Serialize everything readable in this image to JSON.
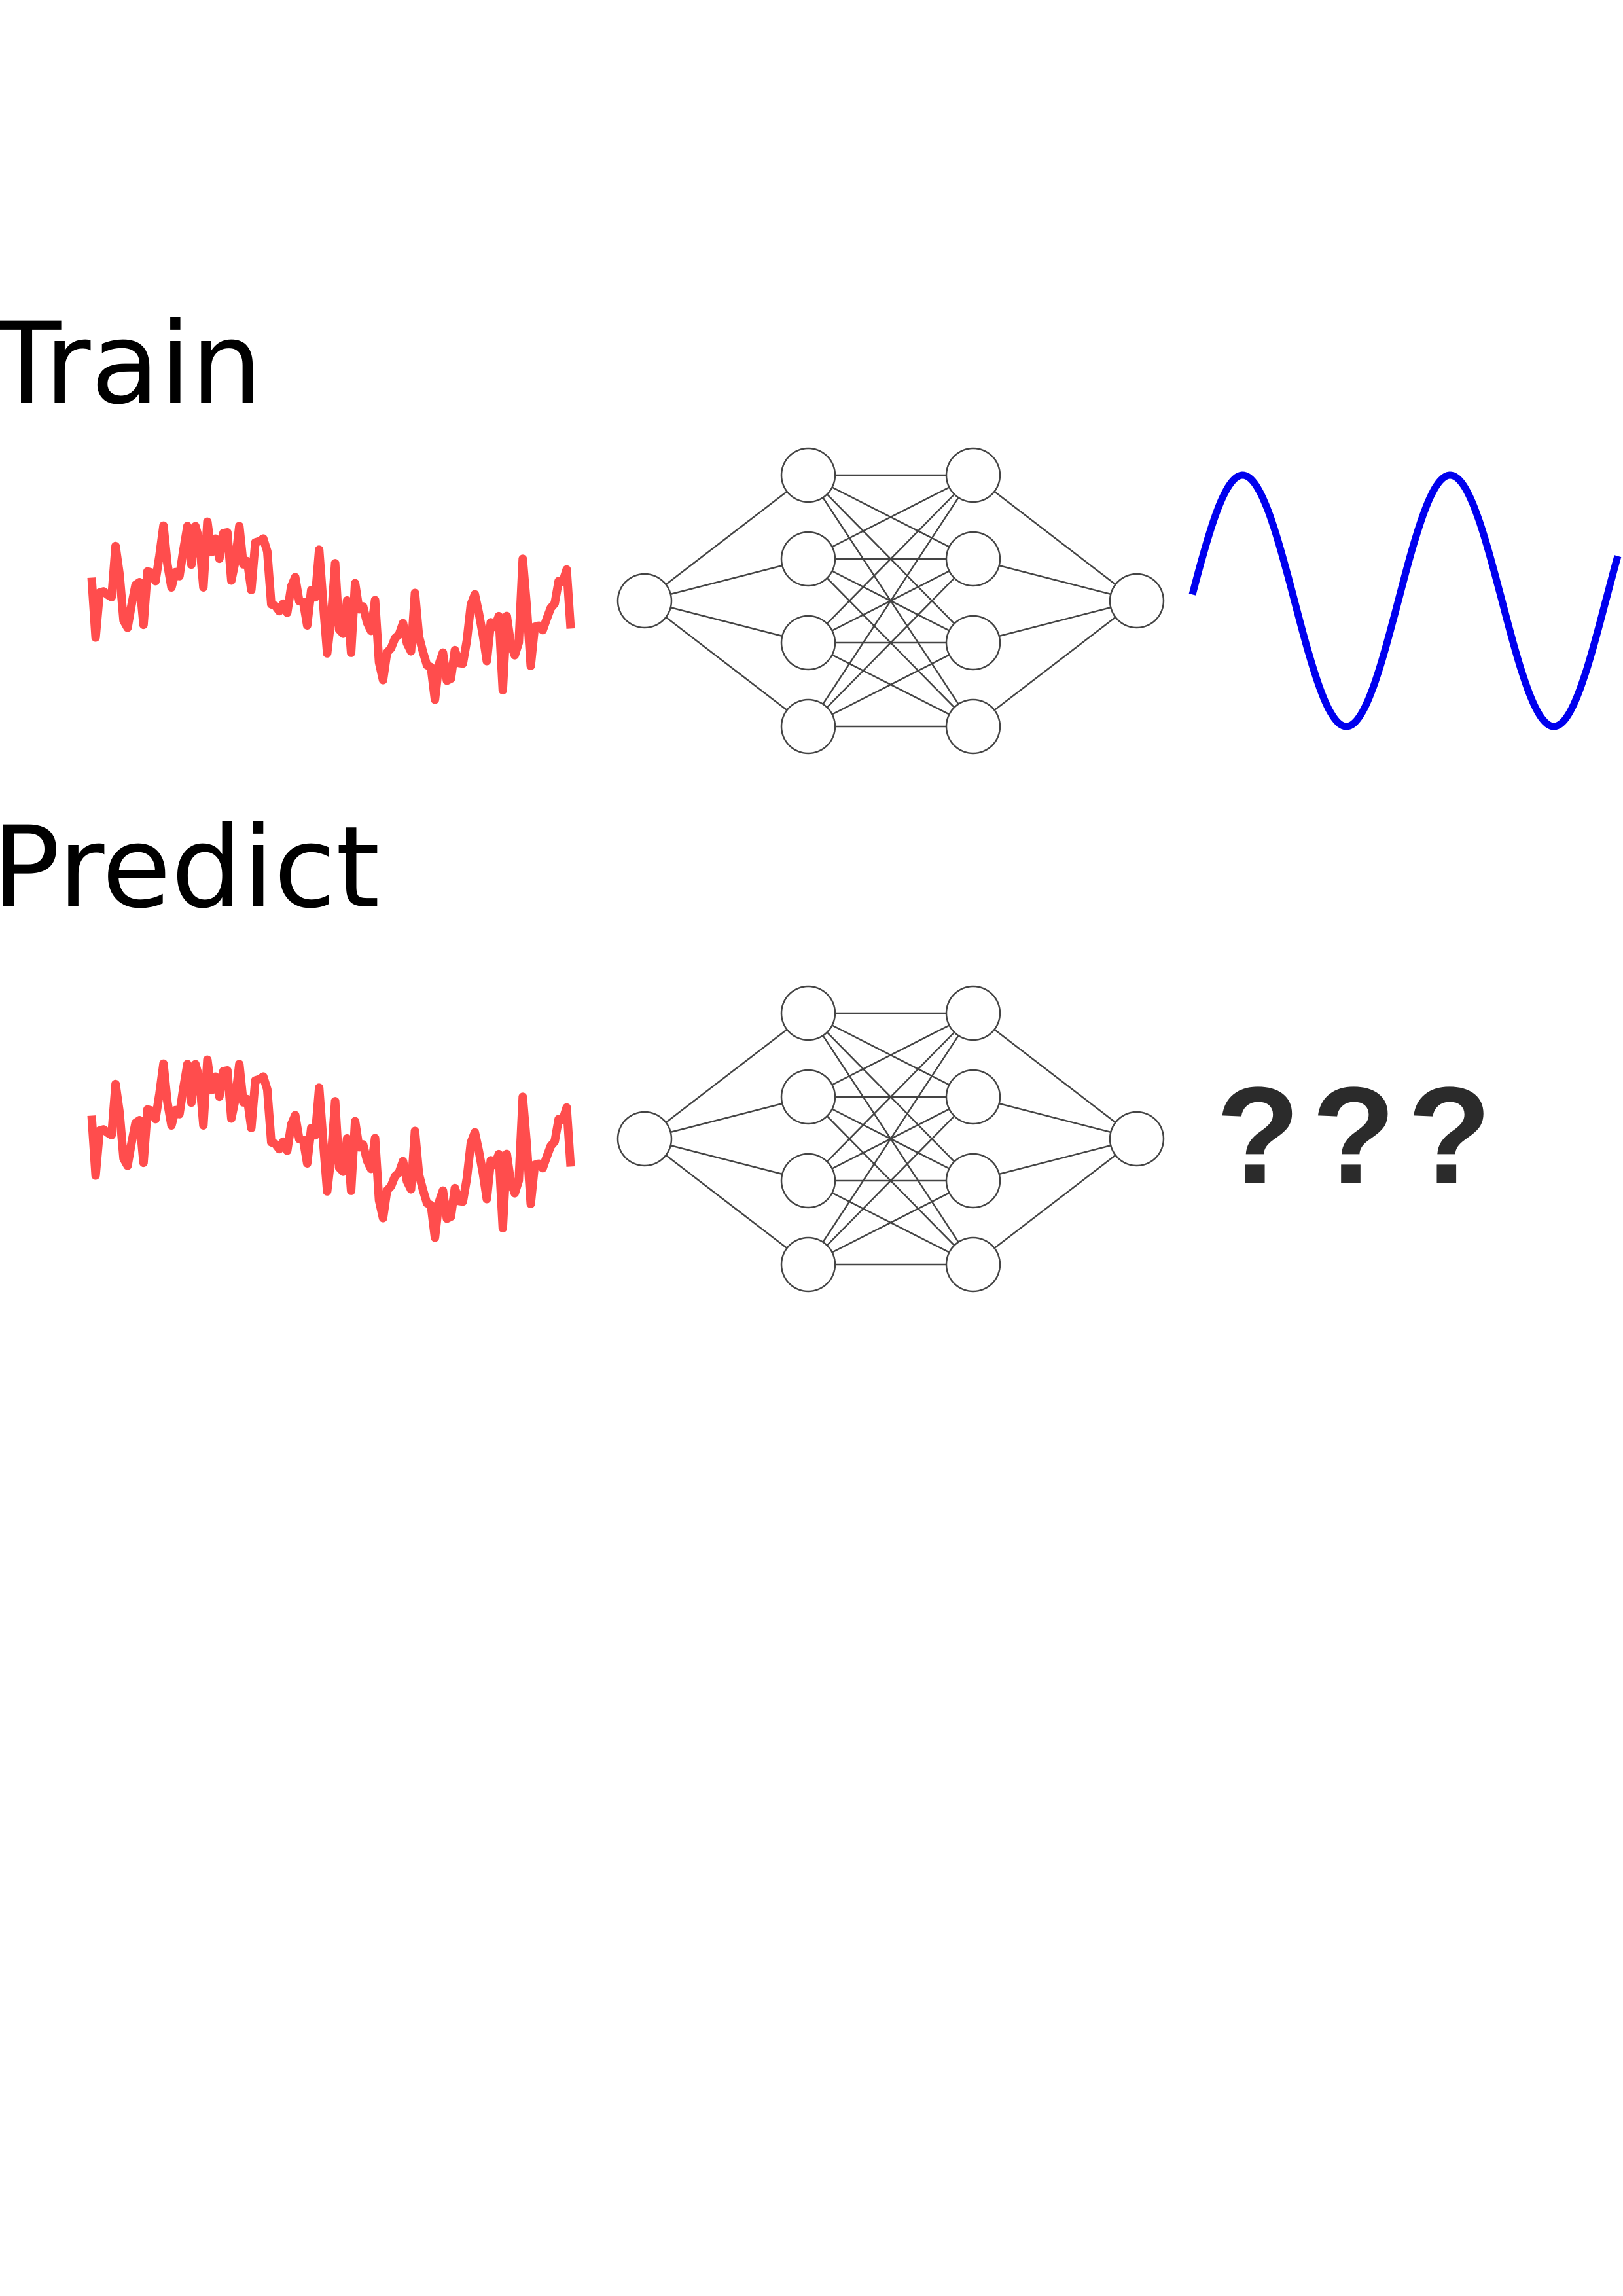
{
  "rows": {
    "train": {
      "label": "Train",
      "input": "noisy-signal",
      "model": "neural-network",
      "output": "clean-sine-wave"
    },
    "predict": {
      "label": "Predict",
      "input": "noisy-signal",
      "model": "neural-network",
      "output_text": "???"
    }
  },
  "network": {
    "layers": [
      1,
      4,
      4,
      1
    ],
    "connections": "fully-connected"
  },
  "colors": {
    "noisy_signal": "#ff4d4d",
    "clean_signal": "#0000ee",
    "node_stroke": "#444444",
    "edge": "#444444",
    "label_text": "#000000",
    "question_text": "#2b2b2b"
  },
  "icons": {
    "input": "noisy-signal-icon",
    "model": "neural-network-icon",
    "output": "sine-wave-icon"
  }
}
